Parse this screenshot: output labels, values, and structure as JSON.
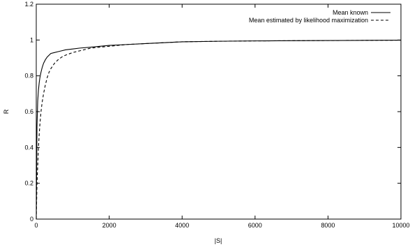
{
  "chart_data": {
    "type": "line",
    "xlabel": "|S|",
    "ylabel": "R",
    "xlim": [
      0,
      10000
    ],
    "ylim": [
      0,
      1.2
    ],
    "xticks": [
      0,
      2000,
      4000,
      6000,
      8000,
      10000
    ],
    "yticks": [
      0,
      0.2,
      0.4,
      0.6,
      0.8,
      1,
      1.2
    ],
    "grid": false,
    "legend_position": "top-right",
    "series": [
      {
        "name": "Mean known",
        "style": "solid",
        "color": "#000000",
        "x": [
          0,
          20,
          40,
          60,
          80,
          100,
          130,
          160,
          200,
          250,
          300,
          350,
          400,
          500,
          600,
          700,
          800,
          1000,
          1200,
          1500,
          2000,
          2500,
          3000,
          3500,
          4000,
          5000,
          6000,
          7000,
          8000,
          9000,
          10000
        ],
        "y": [
          0.0,
          0.52,
          0.66,
          0.72,
          0.76,
          0.79,
          0.82,
          0.845,
          0.87,
          0.89,
          0.905,
          0.915,
          0.925,
          0.93,
          0.935,
          0.94,
          0.945,
          0.95,
          0.955,
          0.96,
          0.97,
          0.975,
          0.98,
          0.985,
          0.99,
          0.993,
          0.995,
          0.996,
          0.997,
          0.998,
          0.999
        ]
      },
      {
        "name": "Mean estimated by likelihood maximization",
        "style": "dashed",
        "color": "#000000",
        "x": [
          0,
          20,
          40,
          60,
          80,
          100,
          130,
          160,
          200,
          250,
          300,
          350,
          400,
          500,
          600,
          700,
          800,
          1000,
          1200,
          1500,
          2000,
          2500,
          3000,
          3500,
          4000,
          5000,
          6000,
          7000,
          8000,
          9000,
          10000
        ],
        "y": [
          0.0,
          0.2,
          0.3,
          0.4,
          0.47,
          0.53,
          0.6,
          0.65,
          0.7,
          0.75,
          0.79,
          0.82,
          0.84,
          0.87,
          0.89,
          0.905,
          0.915,
          0.93,
          0.94,
          0.955,
          0.965,
          0.975,
          0.98,
          0.985,
          0.99,
          0.993,
          0.995,
          0.996,
          0.997,
          0.998,
          0.999
        ]
      }
    ]
  }
}
